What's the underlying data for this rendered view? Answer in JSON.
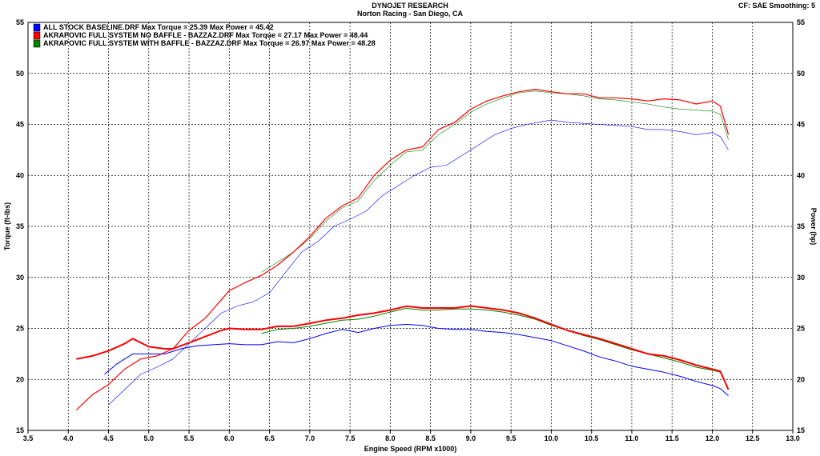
{
  "header": {
    "title": "DYNOJET RESEARCH",
    "subtitle": "Norton Racing - San Diego, CA",
    "cf": "CF: SAE  Smoothing: 5"
  },
  "chart_data": {
    "type": "line",
    "title": "DYNOJET RESEARCH",
    "subtitle": "Norton Racing - San Diego, CA",
    "xlabel": "Engine Speed (RPM x1000)",
    "ylabel": "Torque (ft-lbs)",
    "y2label": "Power (hp)",
    "xlim": [
      3.5,
      13.0
    ],
    "ylim": [
      15,
      55
    ],
    "y2lim": [
      15,
      55
    ],
    "x_ticks": [
      "3.5",
      "4.0",
      "4.5",
      "5.0",
      "5.5",
      "6.0",
      "6.5",
      "7.0",
      "7.5",
      "8.0",
      "8.5",
      "9.0",
      "9.5",
      "10.0",
      "10.5",
      "11.0",
      "11.5",
      "12.0",
      "12.5",
      "13.0"
    ],
    "y_ticks": [
      "15",
      "20",
      "25",
      "30",
      "35",
      "40",
      "45",
      "50",
      "55"
    ],
    "grid": true,
    "legend_position": "top-left",
    "series": [
      {
        "name": "ALL STOCK BASELINE.DRF Max Torque = 25.39 Max Power = 45.42",
        "color": "#0000ff",
        "torque": {
          "x": [
            4.45,
            4.6,
            4.8,
            5.0,
            5.2,
            5.4,
            5.6,
            5.8,
            6.0,
            6.2,
            6.4,
            6.6,
            6.8,
            7.0,
            7.2,
            7.4,
            7.6,
            7.8,
            8.0,
            8.2,
            8.4,
            8.6,
            8.8,
            9.0,
            9.2,
            9.4,
            9.6,
            9.8,
            10.0,
            10.2,
            10.4,
            10.6,
            10.8,
            11.0,
            11.2,
            11.4,
            11.6,
            11.8,
            12.0,
            12.1,
            12.2
          ],
          "y": [
            20.5,
            21.5,
            22.5,
            22.5,
            22.5,
            23.0,
            23.3,
            23.4,
            23.5,
            23.4,
            23.4,
            23.7,
            23.6,
            24.0,
            24.5,
            24.9,
            24.6,
            25.0,
            25.3,
            25.39,
            25.3,
            25.0,
            24.9,
            24.9,
            24.7,
            24.6,
            24.4,
            24.1,
            23.8,
            23.3,
            22.8,
            22.2,
            21.8,
            21.3,
            21.0,
            20.7,
            20.3,
            19.8,
            19.4,
            19.1,
            18.4
          ]
        },
        "power": {
          "x": [
            4.5,
            4.7,
            4.9,
            5.1,
            5.3,
            5.5,
            5.7,
            5.9,
            6.1,
            6.3,
            6.5,
            6.7,
            6.9,
            7.1,
            7.3,
            7.5,
            7.7,
            7.9,
            8.1,
            8.3,
            8.5,
            8.7,
            8.9,
            9.1,
            9.3,
            9.5,
            9.7,
            9.9,
            10.0,
            10.2,
            10.4,
            10.6,
            10.8,
            11.0,
            11.2,
            11.4,
            11.6,
            11.8,
            12.0,
            12.1,
            12.2
          ],
          "y": [
            17.5,
            19.0,
            20.5,
            21.2,
            22.0,
            23.5,
            25.0,
            26.5,
            27.2,
            27.6,
            28.5,
            30.5,
            32.5,
            33.5,
            35.0,
            35.7,
            36.5,
            38.0,
            39.0,
            40.0,
            40.8,
            41.0,
            42.0,
            43.0,
            44.0,
            44.6,
            45.0,
            45.3,
            45.42,
            45.2,
            45.1,
            45.0,
            44.9,
            44.8,
            44.5,
            44.5,
            44.3,
            44.0,
            44.2,
            43.8,
            42.5
          ]
        }
      },
      {
        "name": "AKRAPOVIC FULL SYSTEM NO BAFFLE - BAZZAZ.DRF Max Torque = 27.17 Max Power = 48.44",
        "color": "#ff0000",
        "torque": {
          "x": [
            4.1,
            4.3,
            4.5,
            4.7,
            4.8,
            5.0,
            5.2,
            5.3,
            5.5,
            5.7,
            5.9,
            6.0,
            6.2,
            6.4,
            6.6,
            6.8,
            7.0,
            7.2,
            7.4,
            7.6,
            7.8,
            8.0,
            8.2,
            8.4,
            8.6,
            8.8,
            9.0,
            9.2,
            9.4,
            9.6,
            9.8,
            10.0,
            10.2,
            10.4,
            10.6,
            10.8,
            11.0,
            11.2,
            11.4,
            11.6,
            11.8,
            12.0,
            12.1,
            12.2
          ],
          "y": [
            22.0,
            22.3,
            22.8,
            23.5,
            24.0,
            23.2,
            23.0,
            23.0,
            23.6,
            24.2,
            24.8,
            25.0,
            24.9,
            24.9,
            25.2,
            25.2,
            25.5,
            25.8,
            26.0,
            26.3,
            26.5,
            26.8,
            27.17,
            27.0,
            27.0,
            27.0,
            27.2,
            27.0,
            26.8,
            26.5,
            26.0,
            25.4,
            24.8,
            24.4,
            24.0,
            23.5,
            23.0,
            22.5,
            22.3,
            21.9,
            21.4,
            21.0,
            20.8,
            19.0
          ]
        },
        "power": {
          "x": [
            4.1,
            4.3,
            4.5,
            4.7,
            4.9,
            5.1,
            5.3,
            5.5,
            5.7,
            5.9,
            6.0,
            6.2,
            6.4,
            6.6,
            6.8,
            7.0,
            7.2,
            7.4,
            7.6,
            7.8,
            8.0,
            8.2,
            8.4,
            8.6,
            8.8,
            9.0,
            9.2,
            9.4,
            9.6,
            9.8,
            10.0,
            10.2,
            10.4,
            10.6,
            10.8,
            11.0,
            11.2,
            11.4,
            11.6,
            11.8,
            12.0,
            12.1,
            12.2
          ],
          "y": [
            17.0,
            18.5,
            19.5,
            21.0,
            22.0,
            22.3,
            23.0,
            24.8,
            26.0,
            27.8,
            28.7,
            29.5,
            30.2,
            31.2,
            32.5,
            34.0,
            35.8,
            37.0,
            37.8,
            40.0,
            41.5,
            42.5,
            42.8,
            44.5,
            45.2,
            46.5,
            47.3,
            47.8,
            48.2,
            48.44,
            48.2,
            48.0,
            48.0,
            47.6,
            47.6,
            47.5,
            47.3,
            47.5,
            47.4,
            47.0,
            47.3,
            46.8,
            44.0
          ]
        }
      },
      {
        "name": "AKRAPOVIC FULL SYSTEM WITH BAFFLE - BAZZAZ.DRF Max Torque = 26.97 Max Power = 48.28",
        "color": "#008000",
        "torque": {
          "x": [
            6.4,
            6.6,
            6.8,
            7.0,
            7.2,
            7.4,
            7.6,
            7.8,
            8.0,
            8.2,
            8.4,
            8.6,
            8.8,
            9.0,
            9.2,
            9.4,
            9.6,
            9.8,
            10.0,
            10.2,
            10.4,
            10.6,
            10.8,
            11.0,
            11.2,
            11.4,
            11.6,
            11.8,
            12.0,
            12.1,
            12.2
          ],
          "y": [
            24.5,
            24.9,
            25.0,
            25.2,
            25.5,
            25.8,
            25.9,
            26.2,
            26.6,
            26.97,
            26.8,
            26.8,
            26.9,
            26.9,
            26.8,
            26.6,
            26.3,
            25.9,
            25.3,
            24.8,
            24.3,
            23.9,
            23.4,
            22.9,
            22.5,
            22.1,
            21.7,
            21.2,
            20.9,
            20.7,
            19.0
          ]
        },
        "power": {
          "x": [
            6.4,
            6.6,
            6.8,
            7.0,
            7.2,
            7.4,
            7.6,
            7.8,
            8.0,
            8.2,
            8.4,
            8.6,
            8.8,
            9.0,
            9.2,
            9.4,
            9.6,
            9.8,
            10.0,
            10.2,
            10.4,
            10.6,
            10.8,
            11.0,
            11.2,
            11.4,
            11.6,
            11.8,
            12.0,
            12.1,
            12.2
          ],
          "y": [
            30.5,
            31.5,
            32.5,
            33.8,
            35.5,
            36.8,
            37.5,
            39.5,
            41.0,
            42.3,
            42.5,
            44.0,
            45.0,
            46.2,
            47.0,
            47.6,
            48.1,
            48.28,
            48.1,
            48.0,
            47.8,
            47.5,
            47.4,
            47.2,
            47.0,
            46.7,
            46.5,
            46.4,
            46.3,
            46.0,
            43.5
          ]
        }
      }
    ]
  }
}
